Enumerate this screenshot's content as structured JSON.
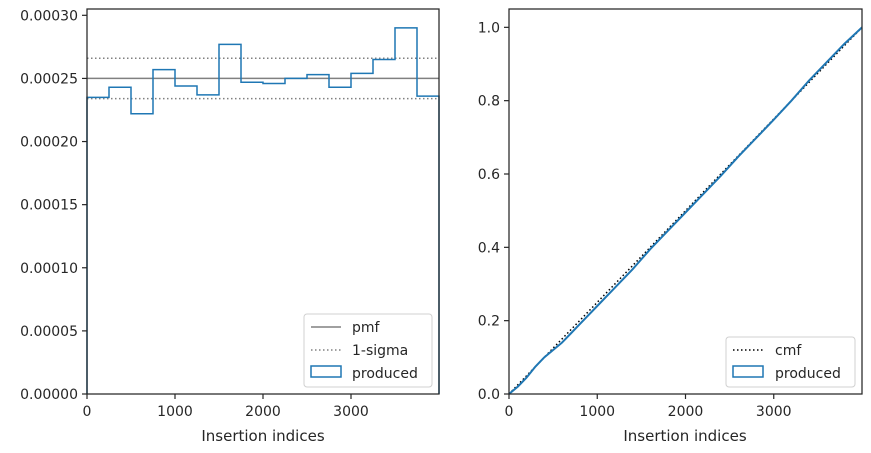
{
  "chart_data": [
    {
      "type": "step-histogram",
      "xlabel": "Insertion indices",
      "ylabel": "",
      "xlim": [
        0,
        4000
      ],
      "ylim": [
        0,
        0.000305
      ],
      "xticks": [
        0,
        1000,
        2000,
        3000
      ],
      "xtick_labels": [
        "0",
        "1000",
        "2000",
        "3000"
      ],
      "yticks": [
        0,
        5e-05,
        0.0001,
        0.00015,
        0.0002,
        0.00025,
        0.0003
      ],
      "ytick_labels": [
        "0.00000",
        "0.00005",
        "0.00010",
        "0.00015",
        "0.00020",
        "0.00025",
        "0.00030"
      ],
      "bin_edges": [
        0,
        250,
        500,
        750,
        1000,
        1250,
        1500,
        1750,
        2000,
        2250,
        2500,
        2750,
        3000,
        3250,
        3500,
        3750,
        4000
      ],
      "produced": [
        0.000235,
        0.000243,
        0.000222,
        0.000257,
        0.000244,
        0.000237,
        0.000277,
        0.000247,
        0.000246,
        0.00025,
        0.000253,
        0.000243,
        0.000254,
        0.000265,
        0.00029,
        0.000236
      ],
      "pmf": 0.00025,
      "sigma_upper": 0.000266,
      "sigma_lower": 0.000234,
      "legend_position": "lower right",
      "legend": [
        {
          "label": "pmf",
          "style": "solid",
          "color": "#808080"
        },
        {
          "label": "1-sigma",
          "style": "dotted",
          "color": "#808080"
        },
        {
          "label": "produced",
          "style": "patch",
          "color": "#1f77b4"
        }
      ]
    },
    {
      "type": "line",
      "xlabel": "Insertion indices",
      "ylabel": "",
      "xlim": [
        0,
        4000
      ],
      "ylim": [
        0,
        1.05
      ],
      "xticks": [
        0,
        1000,
        2000,
        3000
      ],
      "xtick_labels": [
        "0",
        "1000",
        "2000",
        "3000"
      ],
      "yticks": [
        0,
        0.2,
        0.4,
        0.6,
        0.8,
        1.0
      ],
      "ytick_labels": [
        "0.0",
        "0.2",
        "0.4",
        "0.6",
        "0.8",
        "1.0"
      ],
      "cmf": {
        "x": [
          0,
          4000
        ],
        "y": [
          0,
          1.0
        ]
      },
      "produced": {
        "x": [
          0,
          100,
          200,
          300,
          400,
          500,
          600,
          700,
          800,
          1000,
          1200,
          1400,
          1600,
          1800,
          2000,
          2200,
          2400,
          2600,
          2800,
          3000,
          3200,
          3400,
          3600,
          3800,
          4000
        ],
        "y": [
          0,
          0.02,
          0.045,
          0.075,
          0.1,
          0.12,
          0.14,
          0.165,
          0.19,
          0.24,
          0.29,
          0.34,
          0.395,
          0.445,
          0.495,
          0.545,
          0.595,
          0.648,
          0.698,
          0.748,
          0.8,
          0.855,
          0.905,
          0.955,
          1.0
        ]
      },
      "legend_position": "lower right",
      "legend": [
        {
          "label": "cmf",
          "style": "dotted",
          "color": "#000000"
        },
        {
          "label": "produced",
          "style": "patch",
          "color": "#1f77b4"
        }
      ]
    }
  ]
}
